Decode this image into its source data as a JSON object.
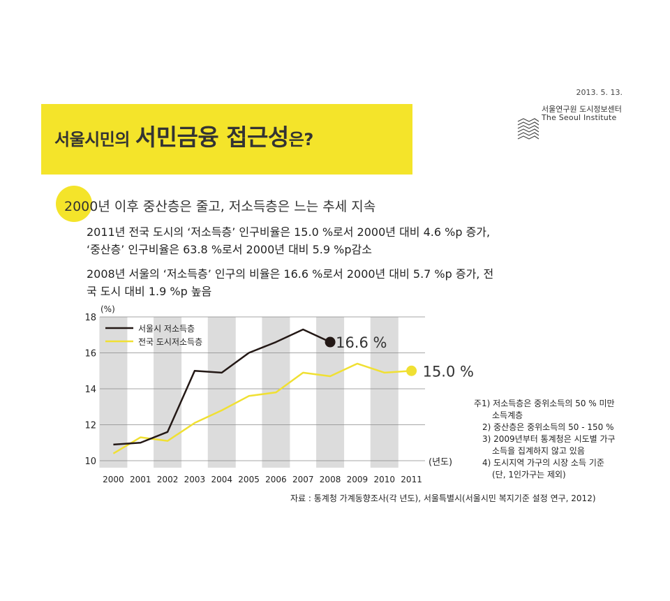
{
  "header": {
    "date": "2013. 5. 13.",
    "org_ko": "서울연구원 도시정보센터",
    "org_en": "The Seoul Institute",
    "title_part1": "서울시민의 ",
    "title_part2": "서민금융 접근성",
    "title_part3": "은?"
  },
  "headline": "2000년 이후 중산층은 줄고, 저소득층은 느는 추세 지속",
  "paragraphs": [
    "2011년 전국 도시의 ‘저소득층’ 인구비율은 15.0 %로서 2000년 대비 4.6 %p 증가,",
    "‘중산층’ 인구비율은 63.8 %로서 2000년 대비 5.9 %p감소",
    "2008년 서울의 ‘저소득층’ 인구의 비율은 16.6 %로서 2000년 대비 5.7 %p 증가, 전",
    "국 도시 대비 1.9 %p 높음"
  ],
  "chart_data": {
    "type": "line",
    "ylabel": "(%)",
    "xlabel": "(년도)",
    "ylim": [
      10,
      18
    ],
    "yticks": [
      10,
      12,
      14,
      16,
      18
    ],
    "x": [
      "2000",
      "2001",
      "2002",
      "2003",
      "2004",
      "2005",
      "2006",
      "2007",
      "2008",
      "2009",
      "2010",
      "2011"
    ],
    "series": [
      {
        "name": "서울시 저소득층",
        "color": "#231815",
        "values": [
          10.9,
          11.0,
          11.6,
          15.0,
          14.9,
          16.0,
          16.6,
          17.3,
          16.6,
          null,
          null,
          null
        ],
        "end_label": "16.6 %"
      },
      {
        "name": "전국 도시저소득층",
        "color": "#f0e033",
        "values": [
          10.4,
          11.3,
          11.1,
          12.1,
          12.8,
          13.6,
          13.8,
          14.9,
          14.7,
          15.4,
          14.9,
          15.0
        ],
        "end_label": "15.0 %"
      }
    ],
    "legend_position": "top-left",
    "shaded_years": [
      "2000",
      "2002",
      "2004",
      "2006",
      "2008",
      "2010"
    ]
  },
  "notes": [
    "주1) 저소득층은 중위소득의 50 % 미만",
    "소득계층",
    "2) 중산층은 중위소득의 50 - 150 %",
    "3) 2009년부터 통계청은 시도별 가구",
    "소득을 집계하지 않고 있음",
    "4) 도시지역 가구의 시장 소득 기준",
    "(단, 1인가구는 제외)"
  ],
  "source": "자료 : 통계청 가계동향조사(각 년도), 서울특별시(서울시민 복지기준 설정 연구, 2012)"
}
